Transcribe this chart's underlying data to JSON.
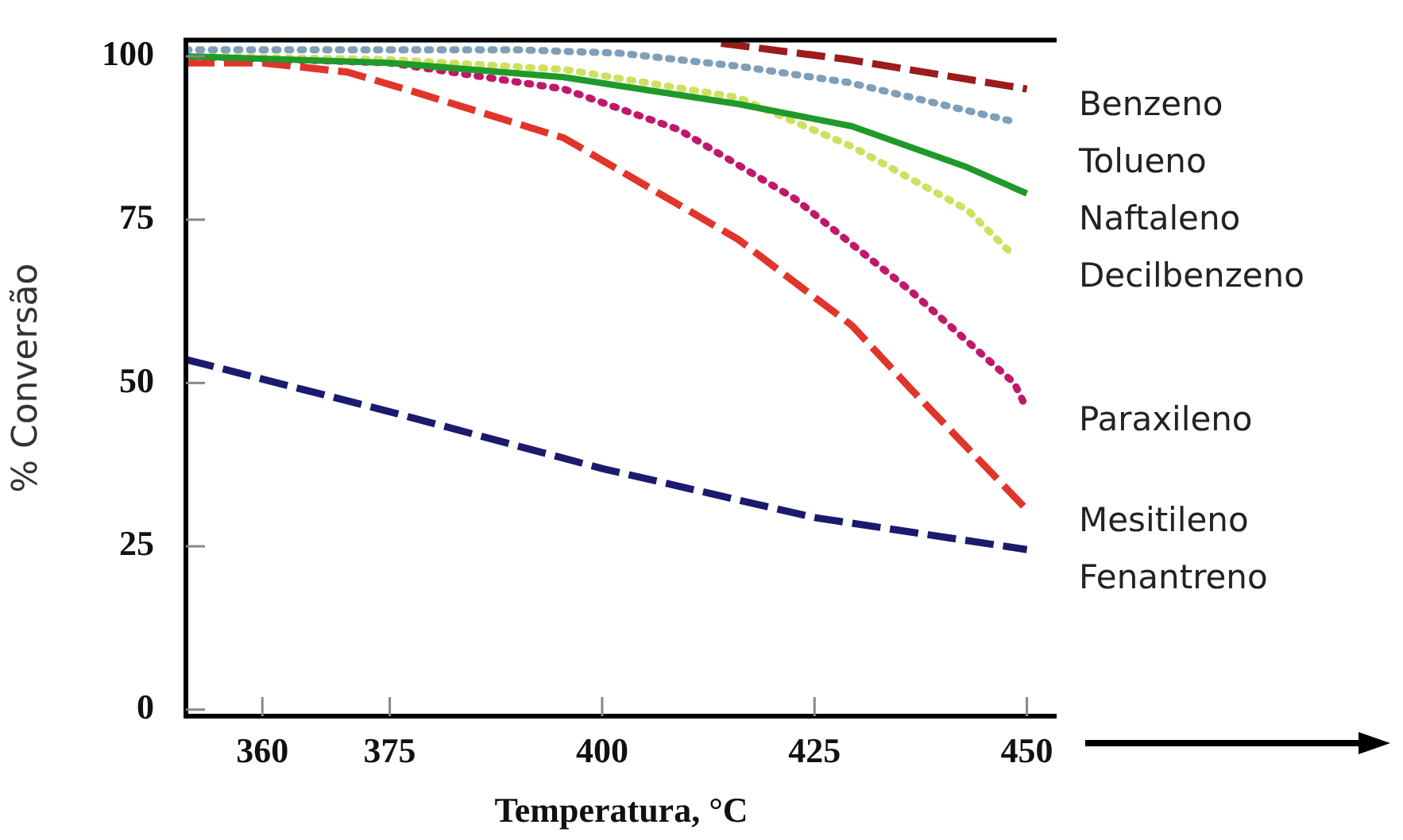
{
  "chart_data": {
    "type": "line",
    "xlabel": "Temperatura, °C",
    "ylabel": "% Conversão",
    "xlim": [
      351,
      453.5
    ],
    "xticks": [
      360,
      375,
      400,
      425,
      450
    ],
    "ylim": [
      -1,
      102.5
    ],
    "yticks": [
      0,
      25,
      50,
      75,
      100
    ],
    "marker": "none",
    "series": [
      {
        "name": "Benzeno",
        "color": "#9b1c1c",
        "line_style": "dashed",
        "x": [
          414,
          429,
          450
        ],
        "values": [
          102,
          99.5,
          95
        ]
      },
      {
        "name": "Tolueno",
        "color": "#7f9fb8",
        "line_style": "dotted",
        "x": [
          351,
          390,
          402,
          416,
          429,
          448.5
        ],
        "values": [
          101,
          101,
          100.5,
          98.5,
          96,
          90
        ]
      },
      {
        "name": "Naftaleno",
        "color": "#1f9a2a",
        "line_style": "solid",
        "x": [
          351,
          375,
          395.5,
          416,
          429.4,
          443,
          450
        ],
        "values": [
          100,
          99,
          96.8,
          92.7,
          89.3,
          83,
          79
        ]
      },
      {
        "name": "Decilbenzeno",
        "color": "#cfe060",
        "line_style": "dotted",
        "x": [
          351,
          375,
          395.5,
          416,
          429.4,
          443,
          448.5
        ],
        "values": [
          100,
          99.5,
          98,
          93.7,
          86.2,
          76.5,
          69.4
        ]
      },
      {
        "name": "Paraxileno",
        "color": "#c0186a",
        "line_style": "dotted",
        "x": [
          351,
          375,
          395.5,
          409,
          422.7,
          436.4,
          448.5,
          450
        ],
        "values": [
          100,
          99,
          95,
          88.8,
          78.2,
          64,
          50,
          46
        ]
      },
      {
        "name": "Mesitileno",
        "color": "#e0352b",
        "line_style": "dashed",
        "x": [
          351,
          360,
          370,
          377.8,
          395.5,
          416,
          429.4,
          436.4,
          450
        ],
        "values": [
          99,
          99,
          97.6,
          94.6,
          87.5,
          72,
          58.8,
          49,
          30.6
        ]
      },
      {
        "name": "Fenantreno",
        "color": "#1a1a6e",
        "line_style": "dashed",
        "x": [
          351,
          375,
          400,
          425,
          450
        ],
        "values": [
          53.6,
          45.6,
          36.9,
          29.4,
          24.5
        ]
      }
    ]
  }
}
